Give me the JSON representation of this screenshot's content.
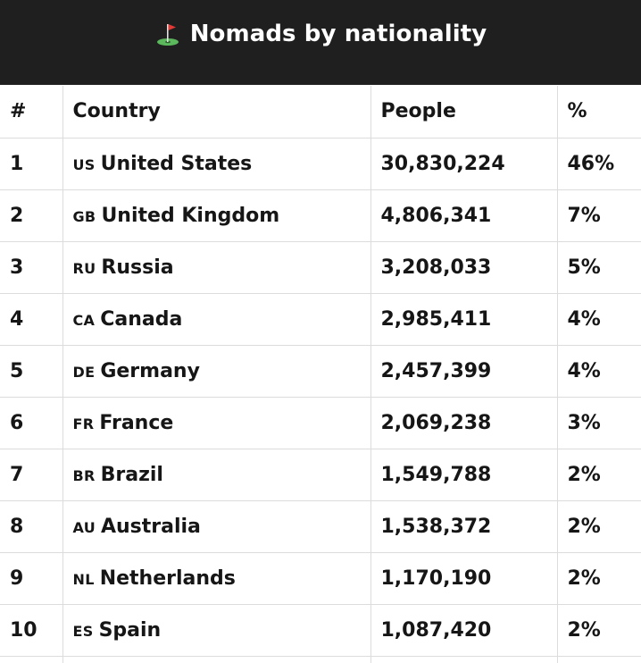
{
  "header": {
    "title": "Nomads by nationality",
    "icon": "golf-flag-icon"
  },
  "table": {
    "columns": [
      "#",
      "Country",
      "People",
      "%"
    ],
    "rows": [
      {
        "rank": "1",
        "code": "US",
        "country": "United States",
        "people": "30,830,224",
        "pct": "46%"
      },
      {
        "rank": "2",
        "code": "GB",
        "country": "United Kingdom",
        "people": "4,806,341",
        "pct": "7%"
      },
      {
        "rank": "3",
        "code": "RU",
        "country": "Russia",
        "people": "3,208,033",
        "pct": "5%"
      },
      {
        "rank": "4",
        "code": "CA",
        "country": "Canada",
        "people": "2,985,411",
        "pct": "4%"
      },
      {
        "rank": "5",
        "code": "DE",
        "country": "Germany",
        "people": "2,457,399",
        "pct": "4%"
      },
      {
        "rank": "6",
        "code": "FR",
        "country": "France",
        "people": "2,069,238",
        "pct": "3%"
      },
      {
        "rank": "7",
        "code": "BR",
        "country": "Brazil",
        "people": "1,549,788",
        "pct": "2%"
      },
      {
        "rank": "8",
        "code": "AU",
        "country": "Australia",
        "people": "1,538,372",
        "pct": "2%"
      },
      {
        "rank": "9",
        "code": "NL",
        "country": "Netherlands",
        "people": "1,170,190",
        "pct": "2%"
      },
      {
        "rank": "10",
        "code": "ES",
        "country": "Spain",
        "people": "1,087,420",
        "pct": "2%"
      }
    ]
  },
  "colors": {
    "header_bg": "#1f1f1f",
    "header_text": "#ffffff",
    "grid": "#dcdcdc"
  }
}
